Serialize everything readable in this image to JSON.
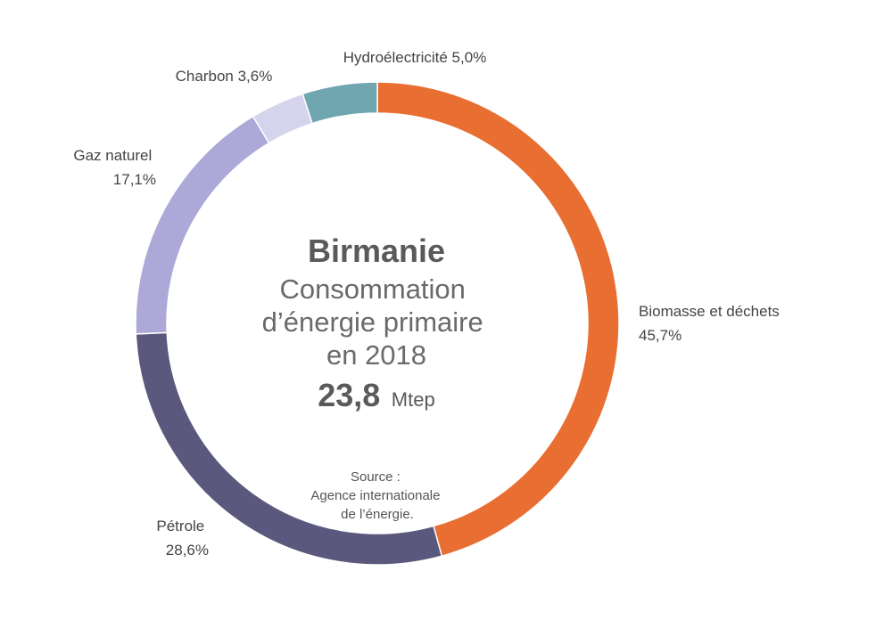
{
  "chart_data": {
    "type": "pie",
    "donut": true,
    "center": {
      "title": "Birmanie",
      "subtitle_lines": [
        "Consommation",
        "d’énergie primaire",
        "en 2018"
      ],
      "total_value": "23,8",
      "total_unit": "Mtep"
    },
    "source_lines": [
      "Source :",
      "Agence internationale",
      "de l’énergie."
    ],
    "slices": [
      {
        "label_lines": [
          "Biomasse et déchets",
          "45,7%"
        ],
        "value": 45.7,
        "color": "#e86e32"
      },
      {
        "label_lines": [
          "Pétrole",
          "28,6%"
        ],
        "value": 28.6,
        "color": "#5b587e"
      },
      {
        "label_lines": [
          "Gaz naturel",
          "17,1%"
        ],
        "value": 17.1,
        "color": "#aca8d8"
      },
      {
        "label_lines": [
          "Charbon 3,6%"
        ],
        "value": 3.6,
        "color": "#d5d4ec"
      },
      {
        "label_lines": [
          "Hydroélectricité 5,0%"
        ],
        "value": 5.0,
        "color": "#6fa6b0"
      }
    ]
  }
}
